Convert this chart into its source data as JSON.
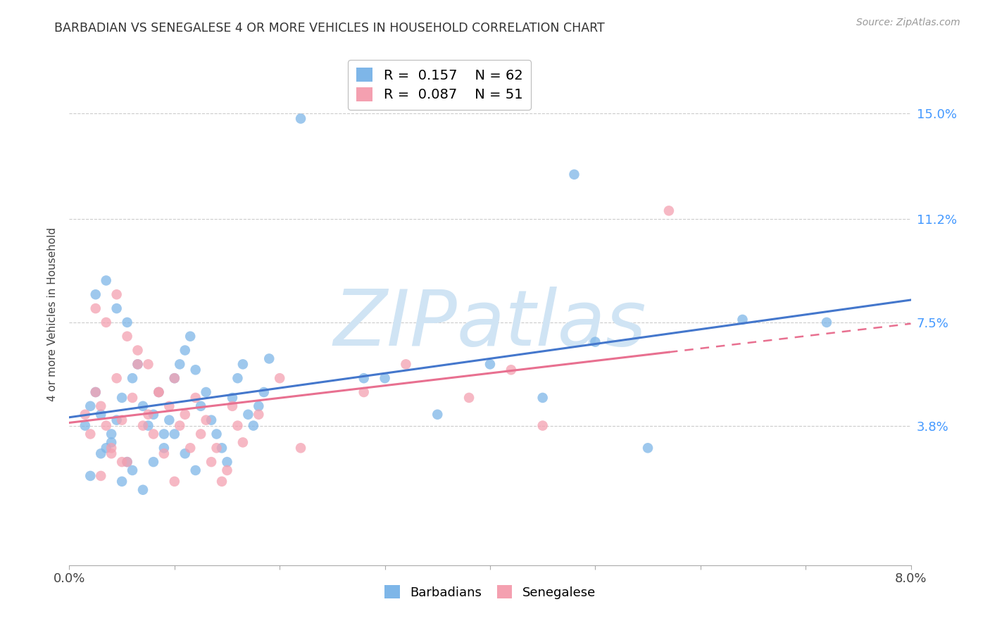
{
  "title": "BARBADIAN VS SENEGALESE 4 OR MORE VEHICLES IN HOUSEHOLD CORRELATION CHART",
  "source": "Source: ZipAtlas.com",
  "ylabel": "4 or more Vehicles in Household",
  "ytick_labels": [
    "15.0%",
    "11.2%",
    "7.5%",
    "3.8%"
  ],
  "ytick_values": [
    0.15,
    0.112,
    0.075,
    0.038
  ],
  "xlim": [
    0.0,
    0.08
  ],
  "ylim": [
    -0.012,
    0.168
  ],
  "legend1_r": "0.157",
  "legend1_n": "62",
  "legend2_r": "0.087",
  "legend2_n": "51",
  "blue_color": "#7EB6E8",
  "pink_color": "#F4A0B0",
  "blue_line_color": "#4477CC",
  "pink_line_color": "#E87090",
  "watermark_color": "#D0E4F4",
  "background_color": "#FFFFFF",
  "barbadians_x": [
    0.0015,
    0.002,
    0.0025,
    0.003,
    0.0035,
    0.004,
    0.0045,
    0.005,
    0.0055,
    0.006,
    0.0065,
    0.007,
    0.0075,
    0.008,
    0.0085,
    0.009,
    0.0095,
    0.01,
    0.0105,
    0.011,
    0.0115,
    0.012,
    0.0125,
    0.013,
    0.0135,
    0.014,
    0.0145,
    0.015,
    0.0155,
    0.016,
    0.0165,
    0.017,
    0.0175,
    0.018,
    0.0185,
    0.002,
    0.003,
    0.004,
    0.005,
    0.006,
    0.007,
    0.008,
    0.009,
    0.01,
    0.011,
    0.012,
    0.0025,
    0.0035,
    0.0045,
    0.0055,
    0.022,
    0.048,
    0.072,
    0.03,
    0.035,
    0.04,
    0.045,
    0.05,
    0.055,
    0.064,
    0.028,
    0.019
  ],
  "barbadians_y": [
    0.038,
    0.045,
    0.05,
    0.042,
    0.03,
    0.035,
    0.04,
    0.048,
    0.025,
    0.055,
    0.06,
    0.045,
    0.038,
    0.042,
    0.05,
    0.035,
    0.04,
    0.055,
    0.06,
    0.065,
    0.07,
    0.058,
    0.045,
    0.05,
    0.04,
    0.035,
    0.03,
    0.025,
    0.048,
    0.055,
    0.06,
    0.042,
    0.038,
    0.045,
    0.05,
    0.02,
    0.028,
    0.032,
    0.018,
    0.022,
    0.015,
    0.025,
    0.03,
    0.035,
    0.028,
    0.022,
    0.085,
    0.09,
    0.08,
    0.075,
    0.148,
    0.128,
    0.075,
    0.055,
    0.042,
    0.06,
    0.048,
    0.068,
    0.03,
    0.076,
    0.055,
    0.062
  ],
  "senegalese_x": [
    0.0015,
    0.002,
    0.0025,
    0.003,
    0.0035,
    0.004,
    0.0045,
    0.005,
    0.0055,
    0.006,
    0.0065,
    0.007,
    0.0075,
    0.008,
    0.0085,
    0.009,
    0.0095,
    0.01,
    0.0105,
    0.011,
    0.0115,
    0.012,
    0.0125,
    0.013,
    0.0135,
    0.014,
    0.0145,
    0.015,
    0.0155,
    0.016,
    0.0165,
    0.0025,
    0.0035,
    0.0045,
    0.0055,
    0.0065,
    0.0075,
    0.0085,
    0.003,
    0.004,
    0.005,
    0.02,
    0.028,
    0.038,
    0.042,
    0.045,
    0.057,
    0.018,
    0.01,
    0.022,
    0.032
  ],
  "senegalese_y": [
    0.042,
    0.035,
    0.05,
    0.045,
    0.038,
    0.03,
    0.055,
    0.04,
    0.025,
    0.048,
    0.06,
    0.038,
    0.042,
    0.035,
    0.05,
    0.028,
    0.045,
    0.055,
    0.038,
    0.042,
    0.03,
    0.048,
    0.035,
    0.04,
    0.025,
    0.03,
    0.018,
    0.022,
    0.045,
    0.038,
    0.032,
    0.08,
    0.075,
    0.085,
    0.07,
    0.065,
    0.06,
    0.05,
    0.02,
    0.028,
    0.025,
    0.055,
    0.05,
    0.048,
    0.058,
    0.038,
    0.115,
    0.042,
    0.018,
    0.03,
    0.06
  ]
}
